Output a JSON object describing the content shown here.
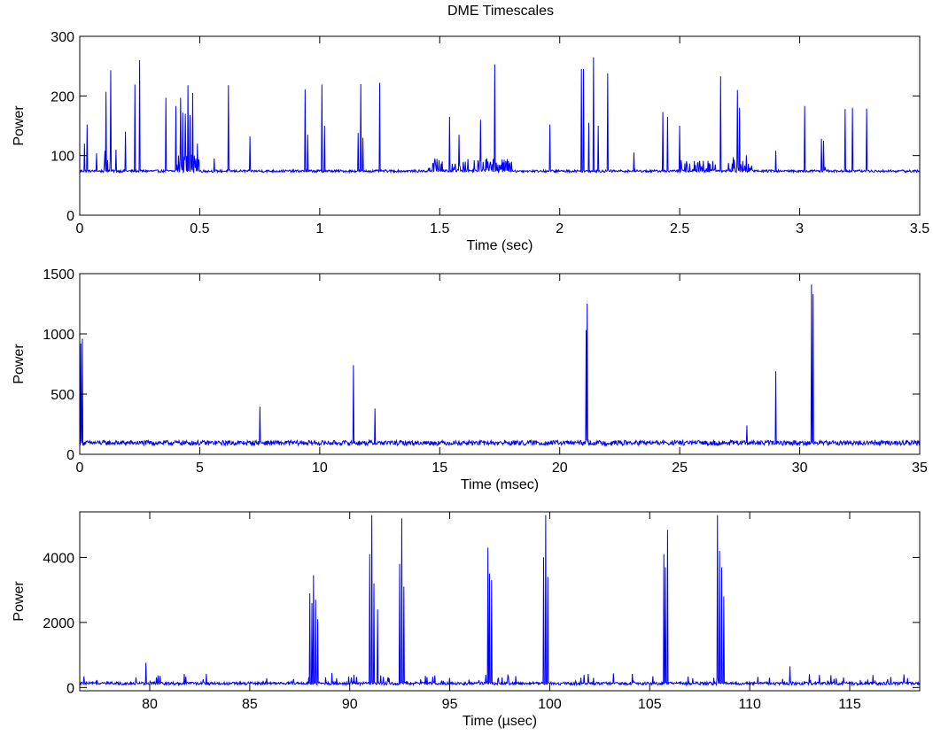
{
  "figure_title": "DME Timescales",
  "line_color": "#0000ff",
  "chart_data": [
    {
      "type": "line",
      "title": "DME Timescales",
      "xlabel": "Time (sec)",
      "ylabel": "Power",
      "xlim": [
        0,
        3.5
      ],
      "ylim": [
        0,
        300
      ],
      "xticks": [
        0,
        0.5,
        1,
        1.5,
        2,
        2.5,
        3,
        3.5
      ],
      "xtick_labels": [
        "0",
        "0.5",
        "1",
        "1.5",
        "2",
        "2.5",
        "3",
        "3.5"
      ],
      "yticks": [
        0,
        100,
        200,
        300
      ],
      "ytick_labels": [
        "0",
        "100",
        "200",
        "300"
      ],
      "grid": false,
      "baseline": 72,
      "noise": 4,
      "dense_regions": [
        [
          0.1,
          0.13,
          100
        ],
        [
          0.4,
          0.5,
          95
        ],
        [
          1.45,
          1.52,
          90
        ],
        [
          1.55,
          1.8,
          90
        ],
        [
          2.5,
          2.65,
          88
        ],
        [
          2.7,
          2.8,
          95
        ],
        [
          3.08,
          3.12,
          80
        ]
      ],
      "series": [
        {
          "peaks_x": [
            0.02,
            0.03,
            0.07,
            0.11,
            0.13,
            0.15,
            0.19,
            0.23,
            0.25,
            0.36,
            0.4,
            0.42,
            0.43,
            0.44,
            0.45,
            0.46,
            0.47,
            0.49,
            0.56,
            0.62,
            0.71,
            0.94,
            0.95,
            1.01,
            1.02,
            1.16,
            1.17,
            1.18,
            1.25,
            1.48,
            1.54,
            1.58,
            1.67,
            1.73,
            1.96,
            2.09,
            2.1,
            2.12,
            2.14,
            2.16,
            2.2,
            2.31,
            2.43,
            2.45,
            2.5,
            2.67,
            2.74,
            2.75,
            2.9,
            3.02,
            3.09,
            3.1,
            3.19,
            3.22,
            3.28
          ],
          "peaks_y": [
            120,
            152,
            104,
            207,
            243,
            110,
            140,
            219,
            260,
            197,
            183,
            197,
            172,
            170,
            218,
            168,
            205,
            120,
            95,
            218,
            132,
            211,
            135,
            219,
            150,
            138,
            220,
            130,
            222,
            95,
            165,
            135,
            160,
            253,
            152,
            245,
            245,
            155,
            265,
            150,
            238,
            105,
            173,
            165,
            150,
            233,
            210,
            180,
            108,
            183,
            128,
            125,
            178,
            180,
            179
          ]
        }
      ]
    },
    {
      "type": "line",
      "xlabel": "Time (msec)",
      "ylabel": "Power",
      "xlim": [
        0,
        35
      ],
      "ylim": [
        0,
        1500
      ],
      "xticks": [
        0,
        5,
        10,
        15,
        20,
        25,
        30,
        35
      ],
      "xtick_labels": [
        "0",
        "5",
        "10",
        "15",
        "20",
        "25",
        "30",
        "35"
      ],
      "yticks": [
        0,
        500,
        1000,
        1500
      ],
      "ytick_labels": [
        "0",
        "500",
        "1000",
        "1500"
      ],
      "grid": false,
      "baseline": 75,
      "noise": 40,
      "dense_regions": [],
      "series": [
        {
          "peaks_x": [
            0.05,
            0.1,
            7.5,
            11.4,
            12.3,
            21.1,
            21.15,
            27.8,
            29.0,
            30.5,
            30.55
          ],
          "peaks_y": [
            920,
            960,
            395,
            740,
            380,
            1030,
            1250,
            240,
            690,
            1410,
            1330
          ]
        }
      ]
    },
    {
      "type": "line",
      "xlabel": "Time (µsec)",
      "ylabel": "Power",
      "xlim": [
        76.5,
        118.5
      ],
      "ylim": [
        -100,
        5400
      ],
      "xticks": [
        80,
        85,
        90,
        95,
        100,
        105,
        110,
        115
      ],
      "xtick_labels": [
        "80",
        "85",
        "90",
        "95",
        "100",
        "105",
        "110",
        "115"
      ],
      "yticks": [
        0,
        2000,
        4000
      ],
      "ytick_labels": [
        "0",
        "2000",
        "4000"
      ],
      "grid": false,
      "baseline": 80,
      "noise": 90,
      "dense_regions": [],
      "series": [
        {
          "peaks_x": [
            79.8,
            88.0,
            88.1,
            88.2,
            88.3,
            88.4,
            91.0,
            91.1,
            91.2,
            91.4,
            92.5,
            92.6,
            92.7,
            96.9,
            97.0,
            97.1,
            99.7,
            99.8,
            99.9,
            105.7,
            105.8,
            105.9,
            108.4,
            108.5,
            108.6,
            108.7,
            112.0
          ],
          "peaks_y": [
            760,
            2900,
            2600,
            3450,
            2700,
            2100,
            4100,
            5300,
            3200,
            2400,
            3800,
            5200,
            3100,
            4300,
            3500,
            3300,
            4000,
            5300,
            3400,
            4100,
            3700,
            4850,
            5300,
            4200,
            3700,
            2800,
            650
          ]
        }
      ]
    }
  ]
}
